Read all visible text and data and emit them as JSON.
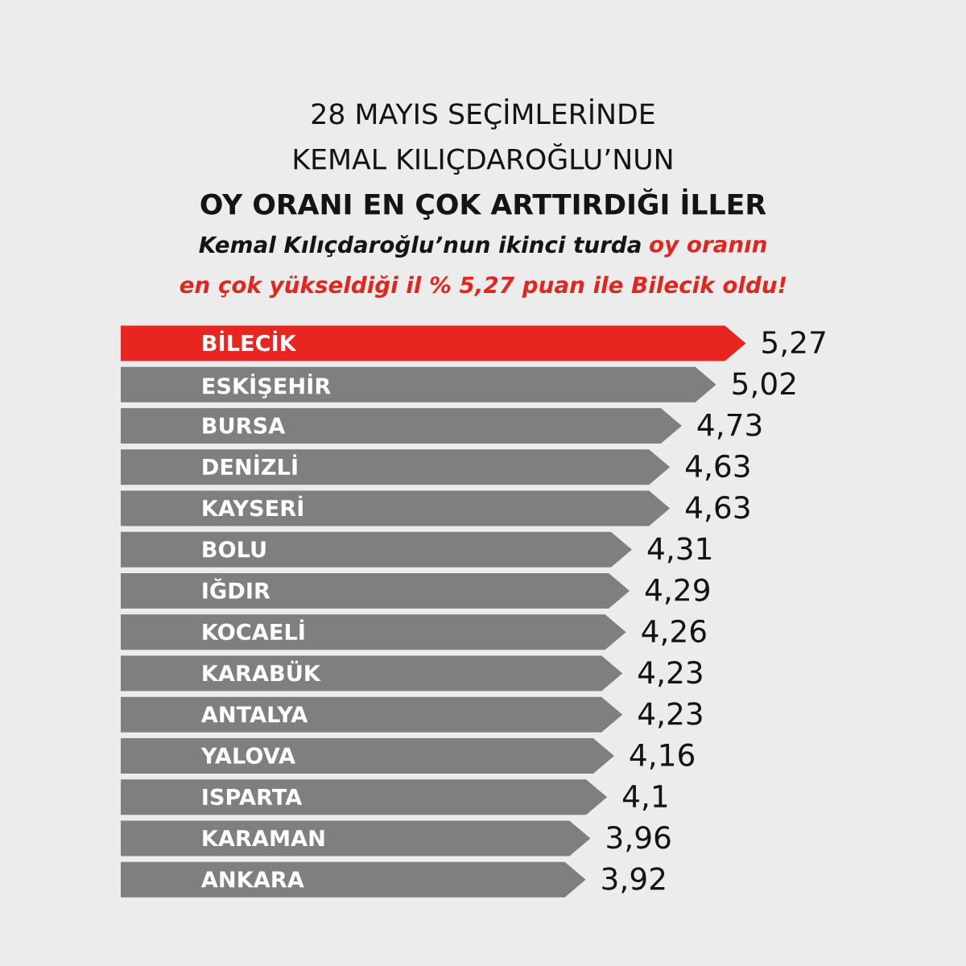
{
  "chart_data": {
    "type": "bar",
    "orientation": "horizontal",
    "title": "28 MAYIS SEÇİMLERİNDE\nKEMAL KILIÇDAROĞLU’NUN\nOY ORANI EN ÇOK ARTTIRDIĞI İLLER",
    "subtitle": "Kemal Kılıçdaroğlu’nun ikinci turda oy oranın\nen çok yükseldiği il % 5,27 puan ile Bilecik oldu!",
    "categories": [
      "BİLECİK",
      "ESKİŞEHİR",
      "BURSA",
      "DENİZLİ",
      "KAYSERİ",
      "BOLU",
      "IĞDIR",
      "KOCAELİ",
      "KARABÜK",
      "ANTALYA",
      "YALOVA",
      "ISPARTA",
      "KARAMAN",
      "ANKARA"
    ],
    "values": [
      5.27,
      5.02,
      4.73,
      4.63,
      4.63,
      4.31,
      4.29,
      4.26,
      4.23,
      4.23,
      4.16,
      4.1,
      3.96,
      3.92
    ],
    "colors": [
      "#e8251f",
      "#7f7f7f",
      "#7f7f7f",
      "#7f7f7f",
      "#7f7f7f",
      "#7f7f7f",
      "#7f7f7f",
      "#7f7f7f",
      "#7f7f7f",
      "#7f7f7f",
      "#7f7f7f",
      "#7f7f7f",
      "#7f7f7f",
      "#7f7f7f"
    ],
    "value_labels": [
      "5,27",
      "5,02",
      "4,73",
      "4,63",
      "4,63",
      "4,31",
      "4,29",
      "4,26",
      "4,23",
      "4,23",
      "4,16",
      "4,1",
      "3,96",
      "3,92"
    ]
  }
}
